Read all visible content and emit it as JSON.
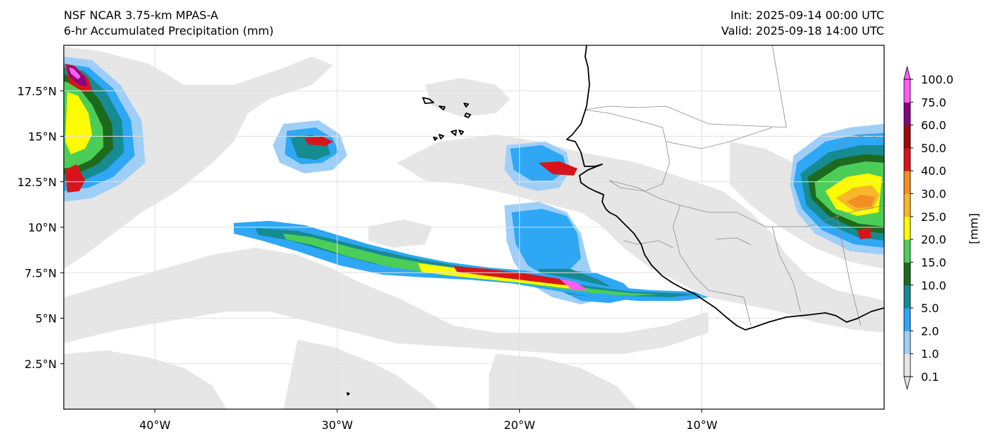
{
  "header": {
    "model": "NSF NCAR 3.75-km MPAS-A",
    "field": "6-hr Accumulated Precipitation (mm)",
    "init": "Init: 2025-09-14 00:00 UTC",
    "valid": "Valid: 2025-09-18 14:00 UTC"
  },
  "map": {
    "extent": {
      "lon_min": -45,
      "lon_max": 0,
      "lat_min": 0,
      "lat_max": 20
    },
    "lon_ticks": [
      {
        "value": -40,
        "label": "40°W"
      },
      {
        "value": -30,
        "label": "30°W"
      },
      {
        "value": -20,
        "label": "20°W"
      },
      {
        "value": -10,
        "label": "10°W"
      }
    ],
    "lat_ticks": [
      {
        "value": 2.5,
        "label": "2.5°N"
      },
      {
        "value": 5,
        "label": "5°N"
      },
      {
        "value": 7.5,
        "label": "7.5°N"
      },
      {
        "value": 10,
        "label": "10°N"
      },
      {
        "value": 12.5,
        "label": "12.5°N"
      },
      {
        "value": 15,
        "label": "15°N"
      },
      {
        "value": 17.5,
        "label": "17.5°N"
      }
    ],
    "gridlines": true,
    "coastline_color": "#000000",
    "border_color": "#888888"
  },
  "colorbar": {
    "unit_label": "[mm]",
    "levels": [
      "0.1",
      "1.0",
      "2.0",
      "5.0",
      "10.0",
      "15.0",
      "20.0",
      "25.0",
      "30.0",
      "40.0",
      "50.0",
      "60.0",
      "75.0",
      "100.0"
    ],
    "colors": [
      "#e6e6e6",
      "#9fcff7",
      "#2ea7f5",
      "#178b92",
      "#1e6a1c",
      "#4ccd58",
      "#fffb00",
      "#f7b62c",
      "#f28e22",
      "#d7141b",
      "#9d0b0b",
      "#850580",
      "#ff5cf5"
    ]
  }
}
